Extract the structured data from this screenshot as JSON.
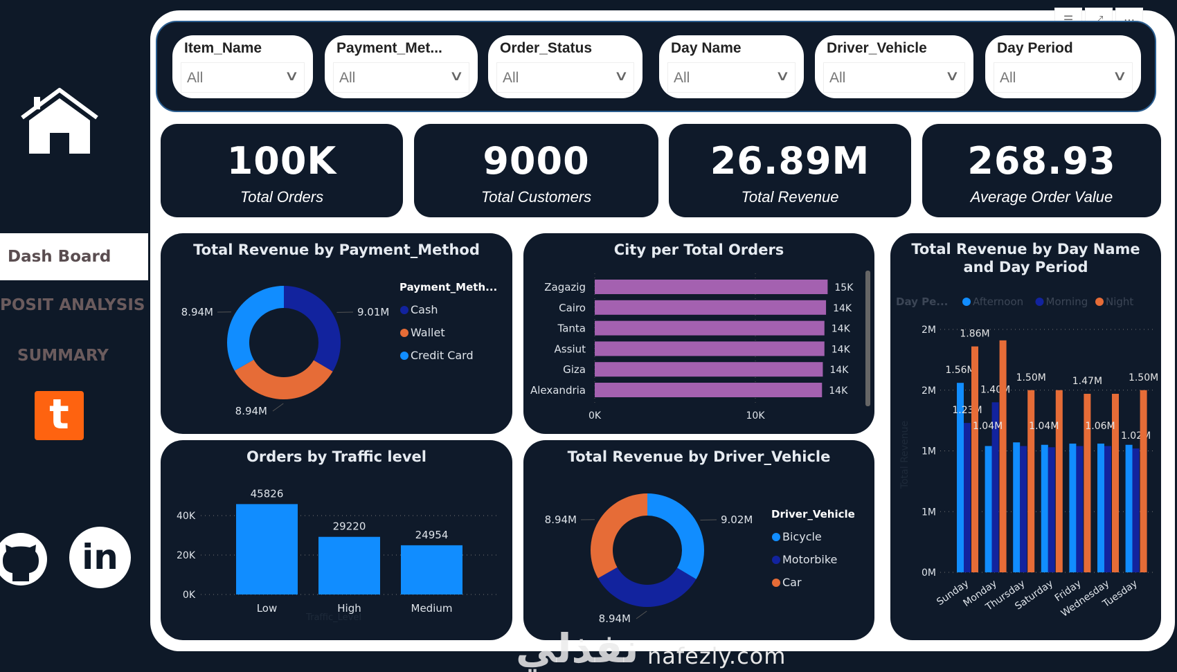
{
  "sidebar": {
    "nav": [
      "Dash Board",
      "POSIT ANALYSIS",
      "SUMMARY"
    ],
    "tableau_letter": "t",
    "linkedin_text": "in"
  },
  "filters": [
    {
      "label": "Item_Name",
      "value": "All"
    },
    {
      "label": "Payment_Met...",
      "value": "All"
    },
    {
      "label": "Order_Status",
      "value": "All"
    },
    {
      "label": "Day Name",
      "value": "All"
    },
    {
      "label": "Driver_Vehicle",
      "value": "All"
    },
    {
      "label": "Day Period",
      "value": "All"
    }
  ],
  "header_icons": [
    "filter-icon",
    "focus-mode-icon",
    "more-options-icon"
  ],
  "kpis": [
    {
      "value": "100K",
      "label": "Total Orders"
    },
    {
      "value": "9000",
      "label": "Total Customers"
    },
    {
      "value": "26.89M",
      "label": "Total Revenue"
    },
    {
      "value": "268.93",
      "label": "Average Order Value"
    }
  ],
  "colors": {
    "light_blue": "#118dff",
    "dark_blue": "#12239e",
    "orange": "#e66c37",
    "purple": "#a461b0",
    "card": "#0f1a2a"
  },
  "chart_data": [
    {
      "type": "pie",
      "title": "Total Revenue by Payment_Method",
      "legend_title": "Payment_Meth...",
      "legend_position": "right",
      "slices": [
        {
          "name": "Cash",
          "value": 9.01,
          "label": "9.01M",
          "color": "#12239e"
        },
        {
          "name": "Wallet",
          "value": 8.94,
          "label": "8.94M",
          "color": "#e66c37"
        },
        {
          "name": "Credit Card",
          "value": 8.94,
          "label": "8.94M",
          "color": "#118dff"
        }
      ]
    },
    {
      "type": "bar",
      "orientation": "horizontal",
      "title": "City per Total Orders",
      "categories": [
        "Zagazig",
        "Cairo",
        "Tanta",
        "Assiut",
        "Giza",
        "Alexandria"
      ],
      "values": [
        14.5,
        14.4,
        14.3,
        14.3,
        14.2,
        14.15
      ],
      "data_labels": [
        "15K",
        "14K",
        "14K",
        "14K",
        "14K",
        "14K"
      ],
      "xticks": [
        {
          "v": 0,
          "label": "0K"
        },
        {
          "v": 10,
          "label": "10K"
        }
      ],
      "unit": "thousands"
    },
    {
      "type": "bar",
      "title": "Total Revenue by Day Name and Day Period",
      "legend_title": "Day Pe...",
      "legend_position": "top-left",
      "ylabel": "Total Revenue",
      "categories": [
        "Sunday",
        "Monday",
        "Thursday",
        "Saturday",
        "Friday",
        "Wednesday",
        "Tuesday"
      ],
      "series": [
        {
          "name": "Afternoon",
          "color": "#118dff",
          "values": [
            1.56,
            1.04,
            1.07,
            1.05,
            1.06,
            1.06,
            1.05
          ],
          "labels": [
            "1.56M",
            null,
            null,
            null,
            null,
            null,
            null
          ]
        },
        {
          "name": "Morning",
          "color": "#12239e",
          "values": [
            1.23,
            1.4,
            1.04,
            1.03,
            1.04,
            1.04,
            1.02
          ],
          "labels": [
            "1.23M",
            "1.40M",
            null,
            null,
            null,
            null,
            "1.02M"
          ]
        },
        {
          "name": "Night",
          "color": "#e66c37",
          "values": [
            1.86,
            1.91,
            1.5,
            1.5,
            1.47,
            1.47,
            1.5
          ],
          "labels": [
            "1.86M",
            null,
            "1.50M",
            null,
            "1.47M",
            null,
            "1.50M"
          ]
        }
      ],
      "extra_labels": [
        {
          "category": "Monday",
          "label": "1.04M"
        },
        {
          "category": "Saturday",
          "label": "1.04M"
        },
        {
          "category": "Wednesday",
          "label": "1.06M"
        }
      ],
      "yticks": [
        {
          "v": 0,
          "label": "0M"
        },
        {
          "v": 0.5,
          "label": "1M"
        },
        {
          "v": 1.0,
          "label": "1M"
        },
        {
          "v": 1.5,
          "label": "2M"
        },
        {
          "v": 2.0,
          "label": "2M"
        }
      ],
      "ylim": [
        0,
        2.0
      ]
    },
    {
      "type": "bar",
      "title": "Orders by Traffic level",
      "xlabel": "Traffic_Level",
      "categories": [
        "Low",
        "High",
        "Medium"
      ],
      "values": [
        45826,
        29220,
        24954
      ],
      "yticks": [
        {
          "v": 0,
          "label": "0K"
        },
        {
          "v": 20000,
          "label": "20K"
        },
        {
          "v": 40000,
          "label": "40K"
        }
      ],
      "color": "#118dff"
    },
    {
      "type": "pie",
      "title": "Total Revenue by Driver_Vehicle",
      "legend_title": "Driver_Vehicle",
      "legend_position": "right",
      "slices": [
        {
          "name": "Bicycle",
          "value": 9.02,
          "label": "9.02M",
          "color": "#118dff"
        },
        {
          "name": "Motorbike",
          "value": 8.94,
          "label": "8.94M",
          "color": "#12239e"
        },
        {
          "name": "Car",
          "value": 8.94,
          "label": "8.94M",
          "color": "#e66c37"
        }
      ]
    }
  ],
  "watermark": {
    "arabic": "نفذلي",
    "latin": "nafezly.com"
  }
}
